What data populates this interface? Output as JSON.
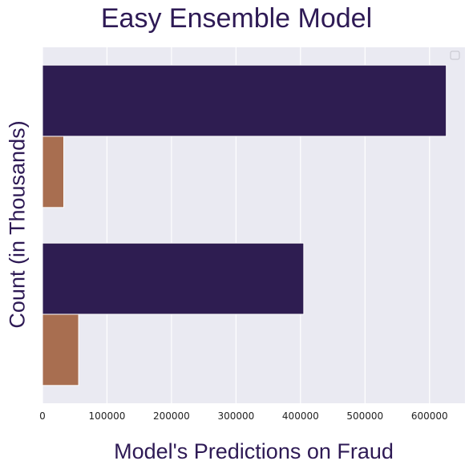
{
  "chart_data": {
    "type": "bar",
    "orientation": "horizontal",
    "title": "Easy Ensemble Model",
    "xlabel": "Model's Predictions on Fraud",
    "ylabel": "Count (in Thousands)",
    "xlim": [
      0,
      655000
    ],
    "xticks": [
      0,
      100000,
      200000,
      300000,
      400000,
      500000,
      600000
    ],
    "categories": [
      "",
      ""
    ],
    "series": [
      {
        "values": [
          626000,
          405000
        ],
        "color": "#2e1d51"
      },
      {
        "values": [
          33000,
          56000
        ],
        "color": "#a86e50"
      }
    ],
    "legend": {
      "position": "top-right",
      "entries": []
    },
    "grid": true,
    "background": "#eaeaf2"
  }
}
